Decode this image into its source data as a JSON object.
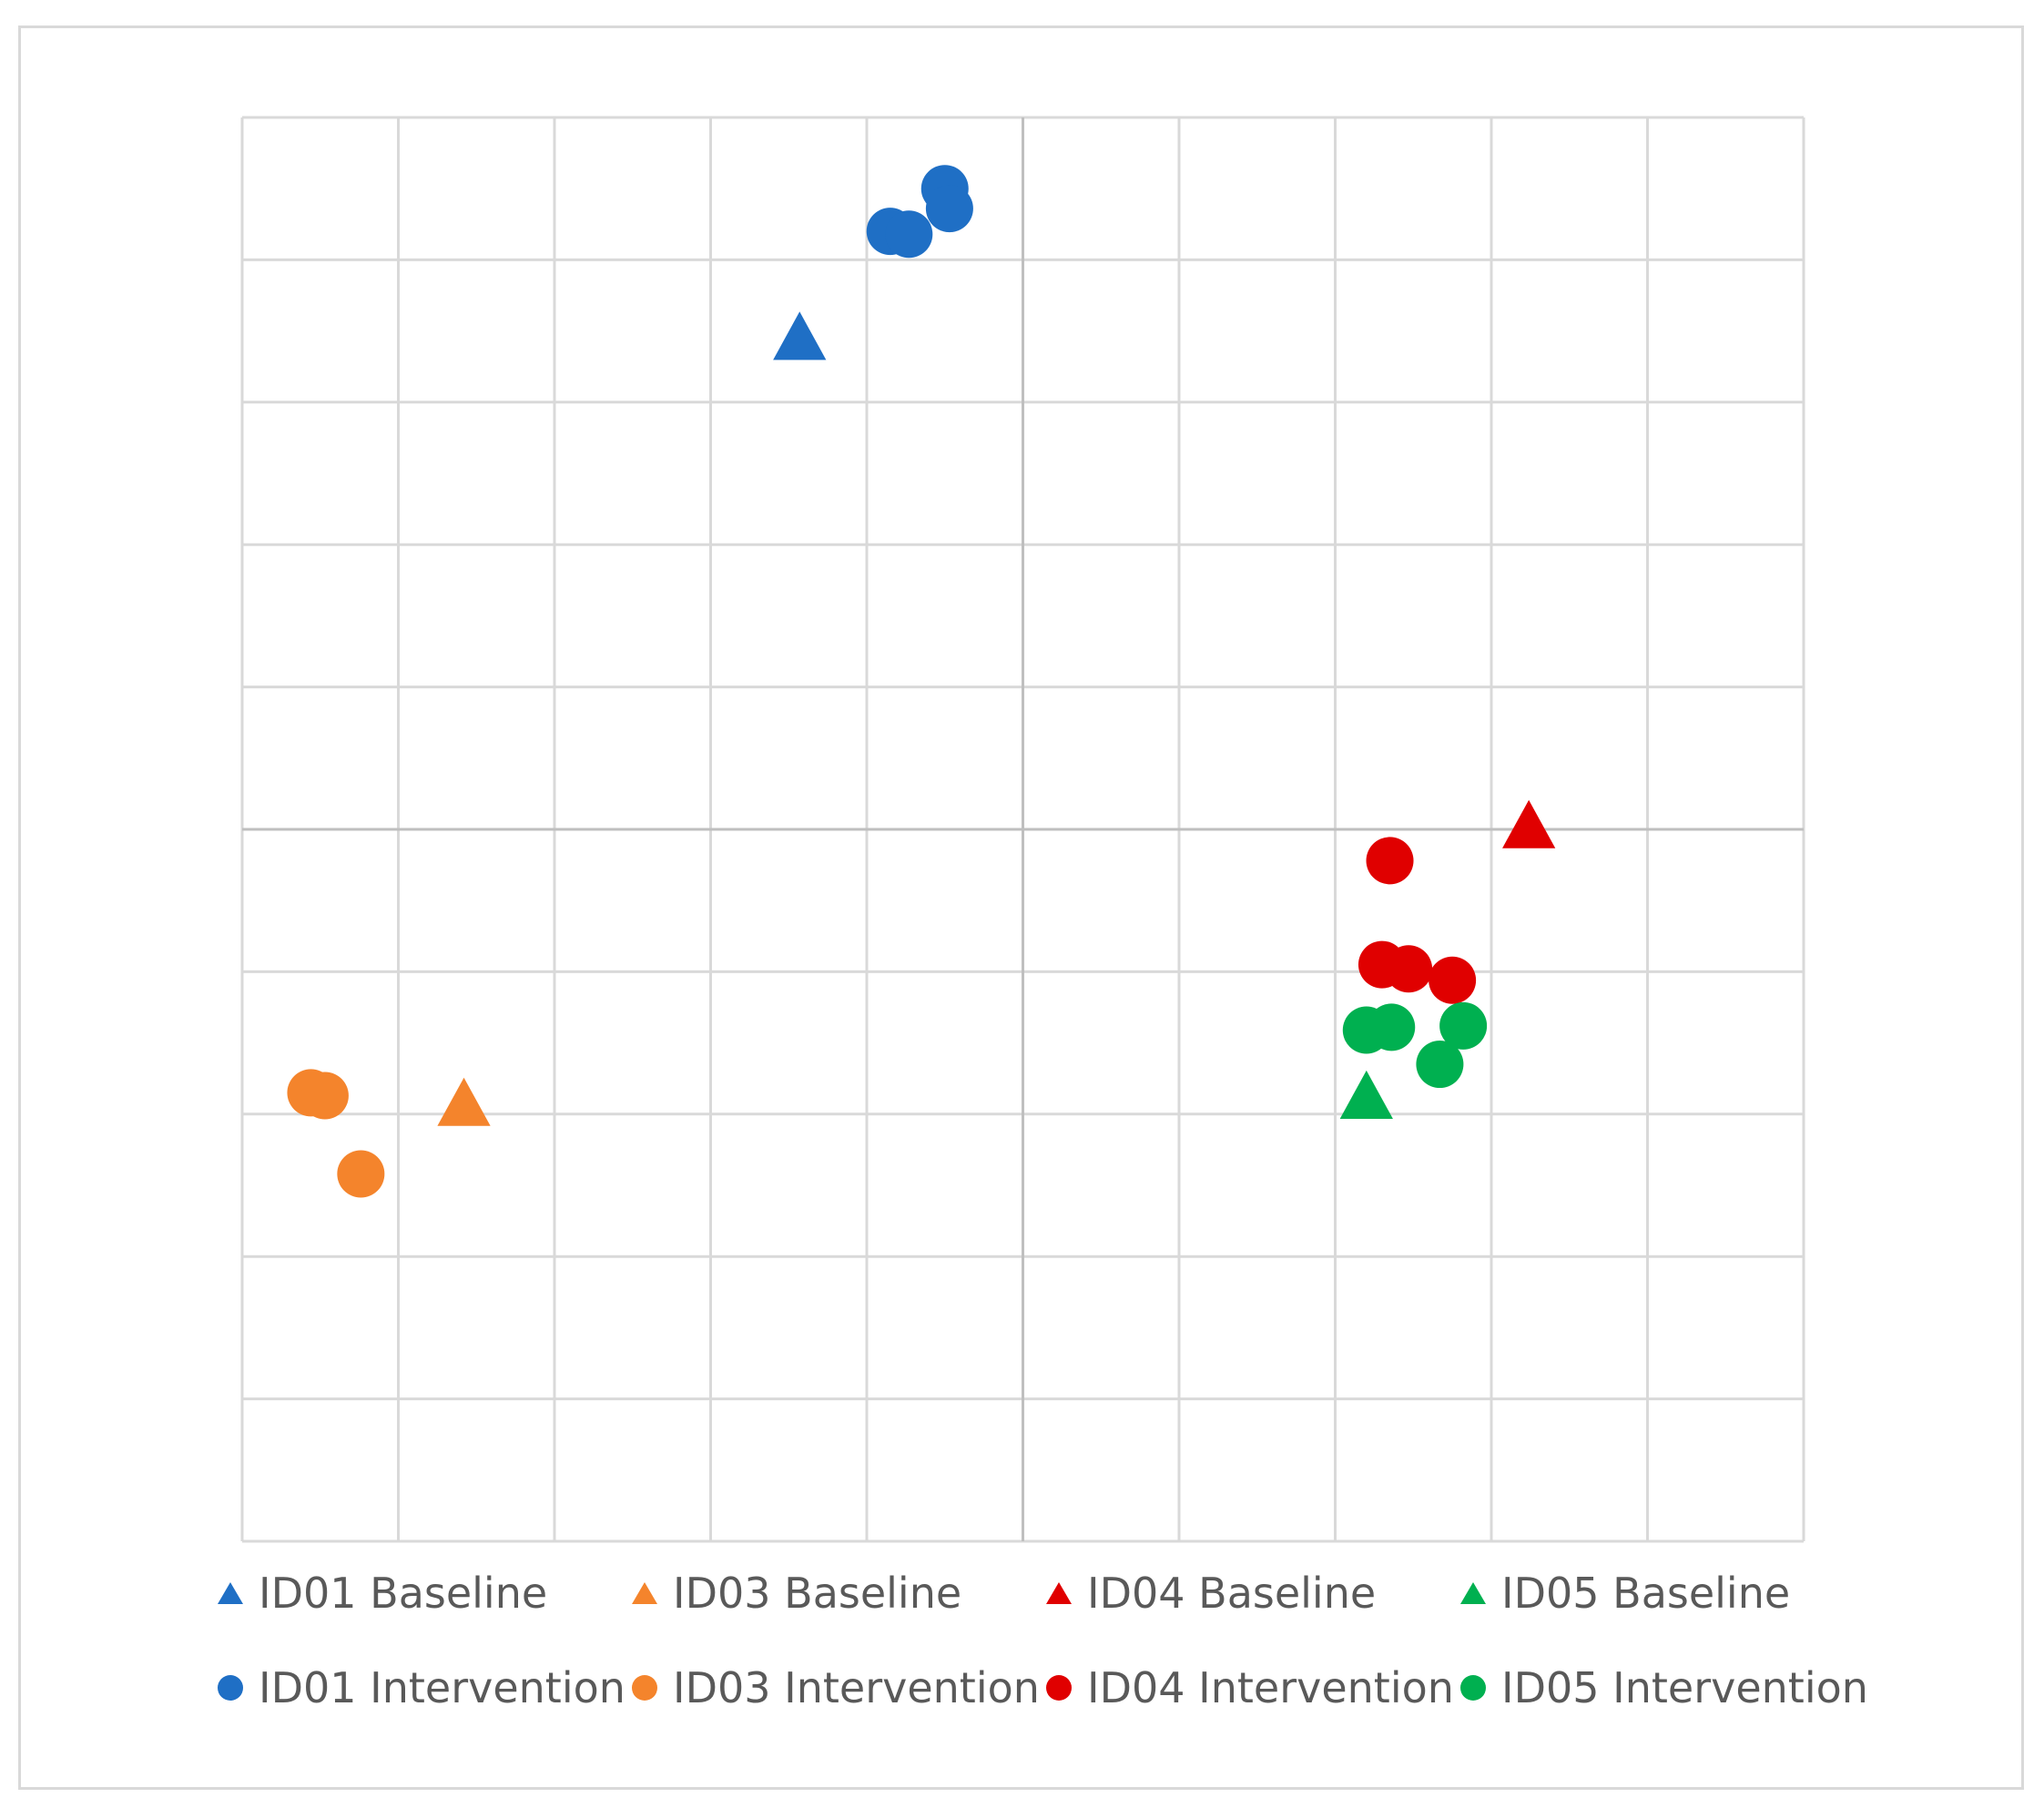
{
  "chart_data": {
    "type": "scatter",
    "title": "",
    "xlabel": "",
    "ylabel": "",
    "xlim": [
      -5,
      5
    ],
    "ylim": [
      -5,
      5
    ],
    "grid": true,
    "legend_position": "bottom",
    "series": [
      {
        "name": "ID01 Baseline",
        "marker": "triangle",
        "color": "#1f6fc5",
        "points": [
          [
            -1.43,
            3.43
          ]
        ]
      },
      {
        "name": "ID03 Baseline",
        "marker": "triangle",
        "color": "#f4842c",
        "points": [
          [
            -3.58,
            -1.95
          ]
        ]
      },
      {
        "name": "ID04 Baseline",
        "marker": "triangle",
        "color": "#e00000",
        "points": [
          [
            3.24,
            0.0
          ]
        ]
      },
      {
        "name": "ID05 Baseline",
        "marker": "triangle",
        "color": "#00b050",
        "points": [
          [
            2.2,
            -1.9
          ]
        ]
      },
      {
        "name": "ID01 Intervention",
        "marker": "circle",
        "color": "#1f6fc5",
        "points": [
          [
            -0.85,
            4.2
          ],
          [
            -0.73,
            4.18
          ],
          [
            -0.5,
            4.5
          ],
          [
            -0.47,
            4.36
          ]
        ]
      },
      {
        "name": "ID03 Intervention",
        "marker": "circle",
        "color": "#f4842c",
        "points": [
          [
            -4.56,
            -1.85
          ],
          [
            -4.47,
            -1.87
          ],
          [
            -4.24,
            -2.42
          ]
        ]
      },
      {
        "name": "ID04 Intervention",
        "marker": "circle",
        "color": "#e00000",
        "points": [
          [
            2.35,
            -0.22
          ],
          [
            2.3,
            -0.95
          ],
          [
            2.47,
            -0.98
          ],
          [
            2.75,
            -1.06
          ]
        ]
      },
      {
        "name": "ID05 Intervention",
        "marker": "circle",
        "color": "#00b050",
        "points": [
          [
            2.2,
            -1.41
          ],
          [
            2.36,
            -1.39
          ],
          [
            2.82,
            -1.38
          ],
          [
            2.67,
            -1.65
          ]
        ]
      }
    ]
  }
}
